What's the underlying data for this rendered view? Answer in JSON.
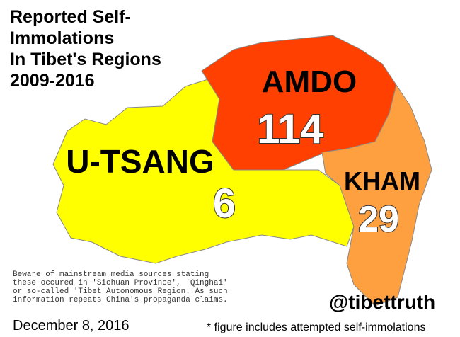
{
  "title": {
    "lines": [
      "Reported Self-",
      "Immolations",
      "In Tibet's Regions",
      "2009-2016"
    ]
  },
  "regions": [
    {
      "name": "AMDO",
      "count": "114"
    },
    {
      "name": "U-TSANG",
      "count": "6"
    },
    {
      "name": "KHAM",
      "count": "29"
    }
  ],
  "note": {
    "lines": [
      "Beware of mainstream media sources stating",
      "these occured in 'Sichuan Province', 'Qinghai'",
      "or so-called 'Tibet Autonomous Region. As such",
      "information repeats China's propaganda claims."
    ]
  },
  "handle": "@tibettruth",
  "date": "December 8, 2016",
  "footnote": "* figure includes attempted self-immolations"
}
